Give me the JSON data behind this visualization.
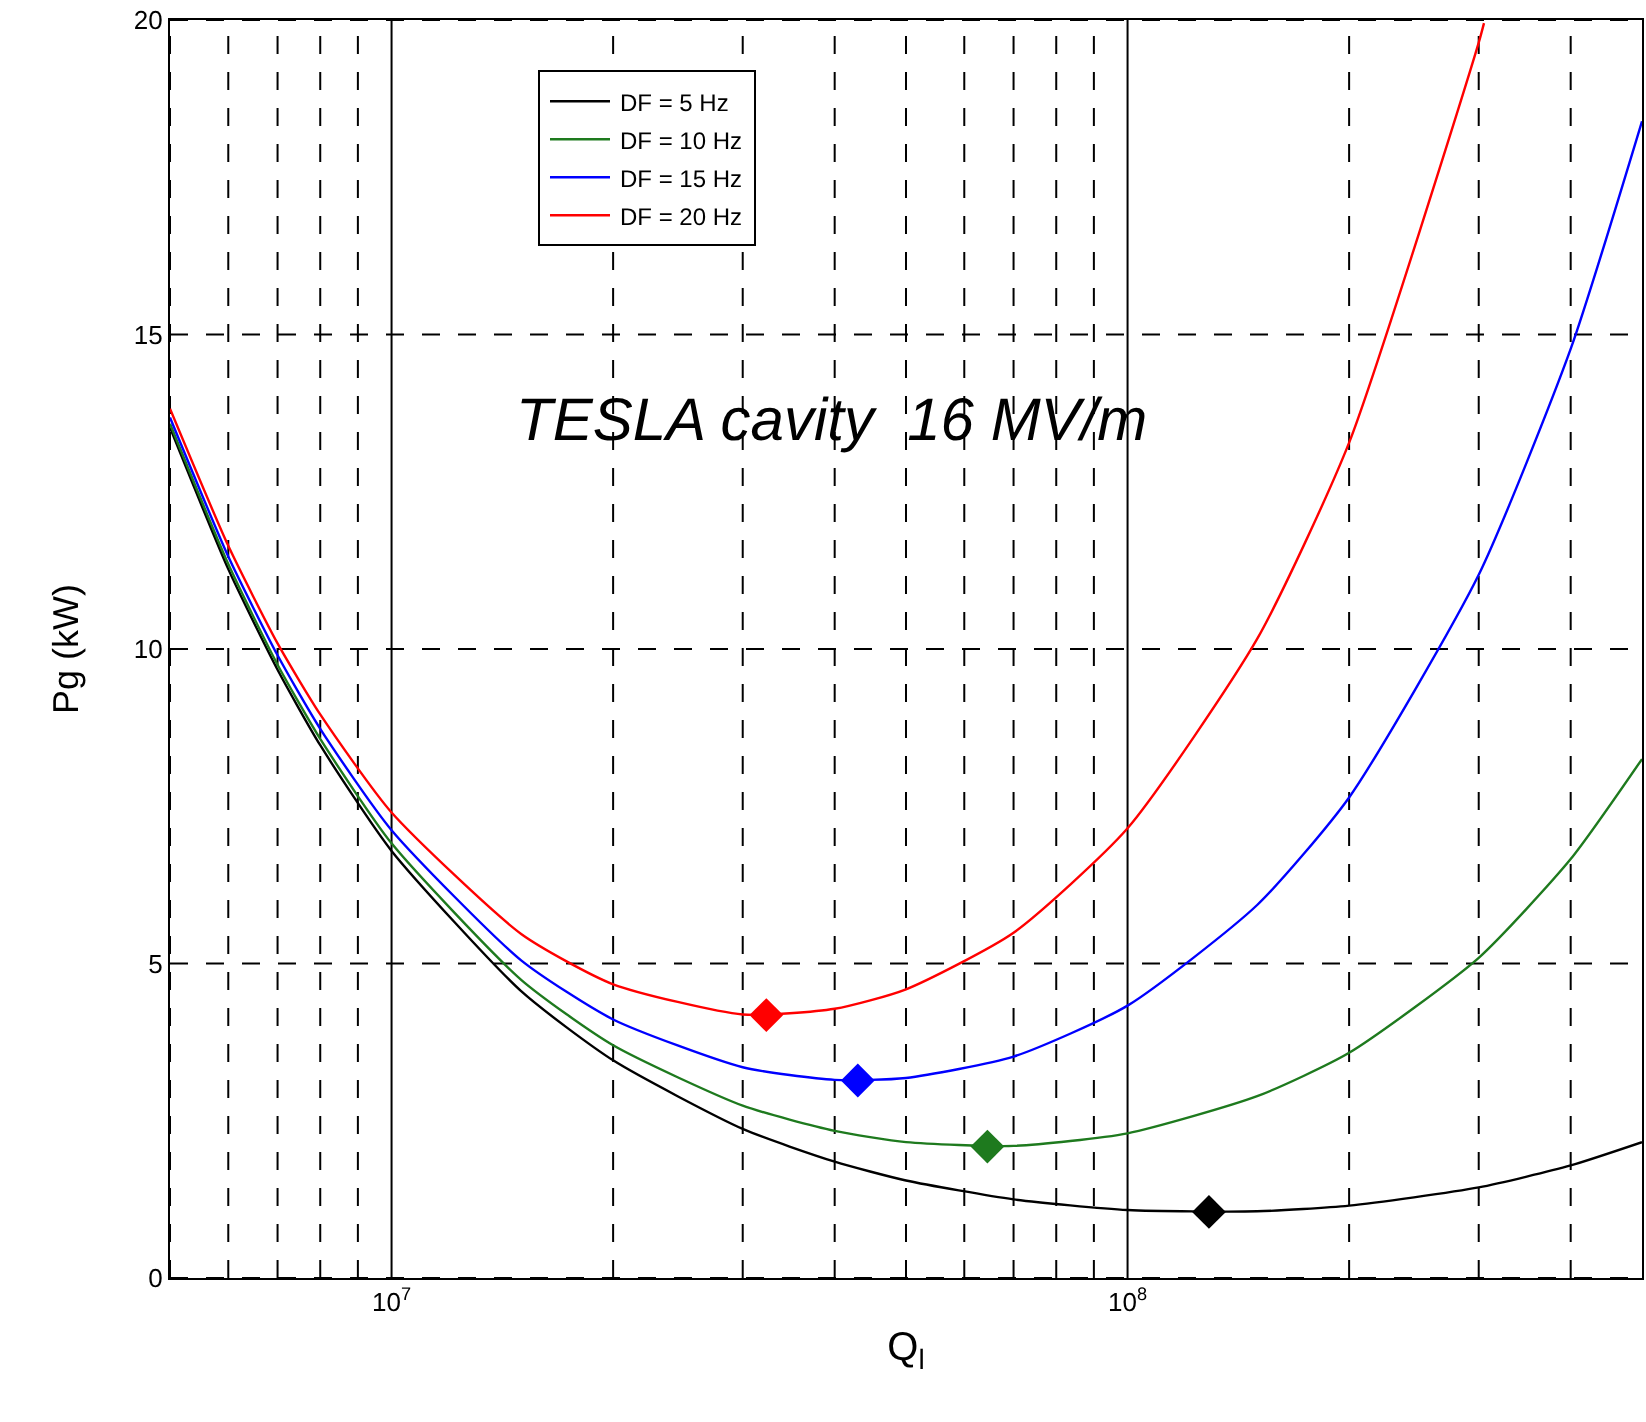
{
  "chart_data": {
    "type": "line",
    "xlabel": "Q$_{l}$",
    "ylabel": "Pg (kW)",
    "log": "x",
    "grid": true,
    "legend": "top left",
    "marker": "none",
    "line_style": "solid",
    "xlim": [
      5000000,
      500000000
    ],
    "ylim": [
      0,
      20
    ],
    "yticks": [
      0,
      5,
      10,
      15,
      20
    ],
    "xticks": [
      {
        "value": 5000000,
        "label": null
      },
      {
        "value": 6000000,
        "label": null
      },
      {
        "value": 7000000,
        "label": null
      },
      {
        "value": 8000000,
        "label": null
      },
      {
        "value": 9000000,
        "label": null
      },
      {
        "value": 10000000,
        "label": "10$^{7}$"
      },
      {
        "value": 20000000,
        "label": null
      },
      {
        "value": 30000000,
        "label": null
      },
      {
        "value": 40000000,
        "label": null
      },
      {
        "value": 50000000,
        "label": null
      },
      {
        "value": 60000000,
        "label": null
      },
      {
        "value": 70000000,
        "label": null
      },
      {
        "value": 80000000,
        "label": null
      },
      {
        "value": 90000000,
        "label": null
      },
      {
        "value": 100000000,
        "label": "10$^{8}$"
      },
      {
        "value": 200000000,
        "label": null
      },
      {
        "value": 300000000,
        "label": null
      },
      {
        "value": 400000000,
        "label": null
      }
    ],
    "annotations": [
      "TESLA cavity  16 MV/m"
    ],
    "series": [
      {
        "name": "DF = 5 Hz",
        "color": "#000000",
        "x": [
          5000000,
          6000000,
          7000000,
          8000000,
          10000000,
          15000000,
          20000000,
          30000000,
          40000000,
          50000000,
          70000000,
          100000000,
          150000000,
          200000000,
          300000000,
          400000000,
          500000000
        ],
        "values": [
          13.52,
          11.27,
          9.67,
          8.47,
          6.79,
          4.56,
          3.46,
          2.37,
          1.85,
          1.55,
          1.25,
          1.08,
          1.06,
          1.15,
          1.44,
          1.79,
          2.16
        ]
      },
      {
        "name": "DF = 10 Hz",
        "color": "#1e7a1e",
        "x": [
          5000000,
          6000000,
          7000000,
          8000000,
          10000000,
          15000000,
          20000000,
          30000000,
          40000000,
          50000000,
          70000000,
          100000000,
          150000000,
          200000000,
          300000000,
          400000000,
          500000000
        ],
        "values": [
          13.58,
          11.35,
          9.75,
          8.57,
          6.91,
          4.74,
          3.7,
          2.74,
          2.34,
          2.16,
          2.1,
          2.3,
          2.89,
          3.58,
          5.09,
          6.66,
          8.25
        ]
      },
      {
        "name": "DF = 15 Hz",
        "color": "#0000ff",
        "x": [
          5000000,
          6000000,
          7000000,
          8000000,
          10000000,
          15000000,
          20000000,
          30000000,
          40000000,
          50000000,
          70000000,
          100000000,
          150000000,
          200000000,
          300000000,
          400000000,
          500000000
        ],
        "values": [
          13.68,
          11.47,
          9.9,
          8.73,
          7.12,
          5.05,
          4.11,
          3.35,
          3.15,
          3.18,
          3.52,
          4.33,
          5.93,
          7.64,
          11.18,
          14.77,
          18.39
        ]
      },
      {
        "name": "DF = 20 Hz",
        "color": "#ff0000",
        "x": [
          5000000,
          6000000,
          7000000,
          8000000,
          10000000,
          15000000,
          20000000,
          30000000,
          40000000,
          50000000,
          70000000,
          100000000,
          150000000,
          200000000,
          300000000,
          305000000
        ],
        "values": [
          13.82,
          11.64,
          10.09,
          8.96,
          7.4,
          5.47,
          4.67,
          4.19,
          4.28,
          4.59,
          5.49,
          7.15,
          10.16,
          13.28,
          19.64,
          19.95
        ]
      },
      {
        "type": "scatter",
        "marker": "diamond",
        "color": "#000000",
        "x": [
          129000000
        ],
        "values": [
          1.05
        ]
      },
      {
        "type": "scatter",
        "marker": "diamond",
        "color": "#1e7a1e",
        "x": [
          64500000
        ],
        "values": [
          2.09
        ]
      },
      {
        "type": "scatter",
        "marker": "diamond",
        "color": "#0000ff",
        "x": [
          43000000
        ],
        "values": [
          3.14
        ]
      },
      {
        "type": "scatter",
        "marker": "diamond",
        "color": "#ff0000",
        "x": [
          32300000
        ],
        "values": [
          4.18
        ]
      }
    ]
  }
}
